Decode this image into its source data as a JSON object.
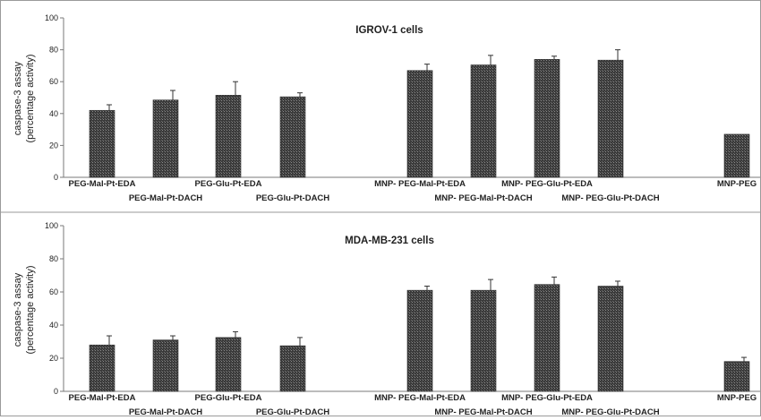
{
  "chart_data": [
    {
      "type": "bar",
      "title": "IGROV-1 cells",
      "ylabel": [
        "caspase-3 assay",
        "(percentage activity)"
      ],
      "xlabel": "",
      "ylim": [
        0,
        100
      ],
      "yticks": [
        0,
        20,
        40,
        60,
        80,
        100
      ],
      "grid": false,
      "legend": "none",
      "categories": [
        "PEG-Mal-Pt-EDA",
        "PEG-Mal-Pt-DACH",
        "PEG-Glu-Pt-EDA",
        "PEG-Glu-Pt-DACH",
        "MNP- PEG-Mal-Pt-EDA",
        "MNP- PEG-Mal-Pt-DACH",
        "MNP- PEG-Glu-Pt-EDA",
        "MNP- PEG-Glu-Pt-DACH",
        "MNP-PEG"
      ],
      "values": [
        42,
        48.5,
        51.5,
        50.5,
        67,
        70.5,
        74,
        73.5,
        27
      ],
      "errors": [
        3.5,
        6,
        8.5,
        2.5,
        4,
        6,
        2,
        6.5,
        0
      ],
      "bar_color": "#3a3a3a"
    },
    {
      "type": "bar",
      "title": "MDA-MB-231 cells",
      "ylabel": [
        "caspase-3 assay",
        "(percentage activity)"
      ],
      "xlabel": "",
      "ylim": [
        0,
        100
      ],
      "yticks": [
        0,
        20,
        40,
        60,
        80,
        100
      ],
      "grid": false,
      "legend": "none",
      "categories": [
        "PEG-Mal-Pt-EDA",
        "PEG-Mal-Pt-DACH",
        "PEG-Glu-Pt-EDA",
        "PEG-Glu-Pt-DACH",
        "MNP- PEG-Mal-Pt-EDA",
        "MNP- PEG-Mal-Pt-DACH",
        "MNP- PEG-Glu-Pt-EDA",
        "MNP- PEG-Glu-Pt-DACH",
        "MNP-PEG"
      ],
      "values": [
        28,
        31,
        32.5,
        27.5,
        61,
        61,
        64.5,
        63.5,
        18
      ],
      "errors": [
        5.5,
        2.5,
        3.5,
        5,
        2.5,
        6.5,
        4.5,
        3,
        2.5
      ],
      "bar_color": "#3a3a3a"
    }
  ]
}
